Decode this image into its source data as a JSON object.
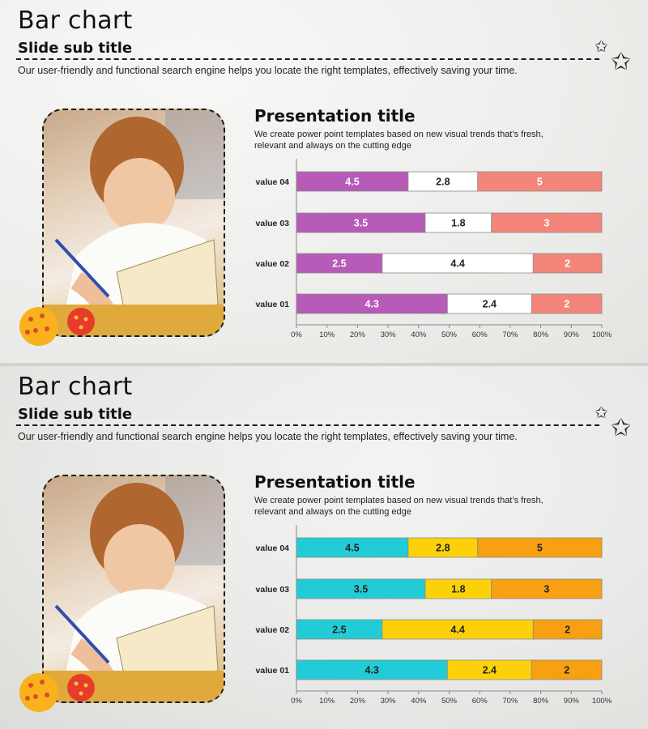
{
  "slides": [
    {
      "title": "Bar chart",
      "subtitle": "Slide sub title",
      "description": "Our user-friendly and functional search engine helps you locate the right templates, effectively saving your time.",
      "presentation_title": "Presentation title",
      "presentation_desc_line1": "We create power point templates based on new visual trends that’s fresh,",
      "presentation_desc_line2": "relevant and always on the cutting edge",
      "colors": [
        "#b65bb7",
        "#ffffff",
        "#f4857a"
      ],
      "label_colors": [
        "#ffffff",
        "#222222",
        "#ffffff"
      ]
    },
    {
      "title": "Bar chart",
      "subtitle": "Slide sub title",
      "description": "Our user-friendly and functional search engine helps you locate the right templates, effectively saving your time.",
      "presentation_title": "Presentation title",
      "presentation_desc_line1": "We create power point templates based on new visual trends that’s fresh,",
      "presentation_desc_line2": "relevant and always on the cutting edge",
      "colors": [
        "#22ccd6",
        "#fdd10a",
        "#f7a012"
      ],
      "label_colors": [
        "#222222",
        "#222222",
        "#222222"
      ]
    }
  ],
  "chart_data": [
    {
      "type": "bar",
      "orientation": "horizontal",
      "stacking": "percent",
      "categories": [
        "value 04",
        "value 03",
        "value 02",
        "value 01"
      ],
      "series": [
        {
          "values": [
            4.5,
            3.5,
            2.5,
            4.3
          ]
        },
        {
          "values": [
            2.8,
            1.8,
            4.4,
            2.4
          ]
        },
        {
          "values": [
            5,
            3,
            2,
            2
          ]
        }
      ],
      "xlim": [
        0,
        100
      ],
      "x_ticks": [
        "0%",
        "10%",
        "20%",
        "30%",
        "40%",
        "50%",
        "60%",
        "70%",
        "80%",
        "90%",
        "100%"
      ],
      "grid": false,
      "legend": "none"
    },
    {
      "type": "bar",
      "orientation": "horizontal",
      "stacking": "percent",
      "categories": [
        "value 04",
        "value 03",
        "value 02",
        "value 01"
      ],
      "series": [
        {
          "values": [
            4.5,
            3.5,
            2.5,
            4.3
          ]
        },
        {
          "values": [
            2.8,
            1.8,
            4.4,
            2.4
          ]
        },
        {
          "values": [
            5,
            3,
            2,
            2
          ]
        }
      ],
      "xlim": [
        0,
        100
      ],
      "x_ticks": [
        "0%",
        "10%",
        "20%",
        "30%",
        "40%",
        "50%",
        "60%",
        "70%",
        "80%",
        "90%",
        "100%"
      ],
      "grid": false,
      "legend": "none"
    }
  ]
}
